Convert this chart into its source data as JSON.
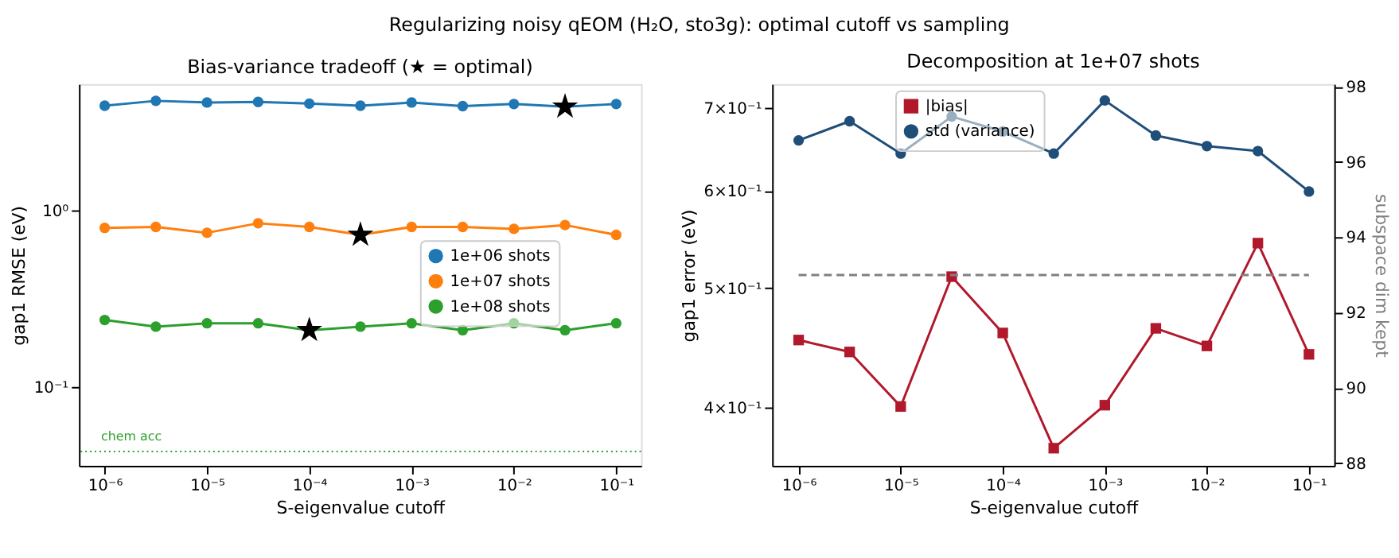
{
  "chart_data": [
    {
      "type": "line",
      "title": "Bias-variance tradeoff (★ = optimal)",
      "xlabel": "S-eigenvalue cutoff",
      "ylabel": "gap1 RMSE (eV)",
      "log": "xy",
      "marker": "circle",
      "line_style": "solid",
      "grid": false,
      "legend": "right",
      "annotations": [
        "Regularizing noisy qEOM (H₂O, sto3g): optimal cutoff vs sampling"
      ],
      "x": [
        1e-06,
        3.16e-06,
        1e-05,
        3.16e-05,
        0.0001,
        0.000316,
        0.001,
        0.00316,
        0.01,
        0.0316,
        0.1
      ],
      "xlim": [
        5.6e-07,
        0.175
      ],
      "xticks": [
        {
          "value": 1e-06,
          "label": "10⁻⁶"
        },
        {
          "value": 1e-05,
          "label": "10⁻⁵"
        },
        {
          "value": 0.0001,
          "label": "10⁻⁴"
        },
        {
          "value": 0.001,
          "label": "10⁻³"
        },
        {
          "value": 0.01,
          "label": "10⁻²"
        },
        {
          "value": 0.1,
          "label": "10⁻¹"
        }
      ],
      "ylim": [
        0.0357,
        5.24
      ],
      "yticks": [
        {
          "value": 0.1,
          "label": "10⁻¹"
        },
        {
          "value": 1,
          "label": "10⁰"
        }
      ],
      "series": [
        {
          "name": "1e+06 shots",
          "color": "#1f77b4",
          "values": [
            3.95,
            4.21,
            4.12,
            4.15,
            4.06,
            3.95,
            4.12,
            3.93,
            4.04,
            3.9,
            4.04
          ]
        },
        {
          "name": "1e+07 shots",
          "color": "#ff7f0e",
          "values": [
            0.8,
            0.81,
            0.75,
            0.85,
            0.81,
            0.73,
            0.81,
            0.81,
            0.79,
            0.83,
            0.73
          ]
        },
        {
          "name": "1e+08 shots",
          "color": "#2ca02c",
          "values": [
            0.24,
            0.22,
            0.23,
            0.23,
            0.21,
            0.22,
            0.23,
            0.21,
            0.23,
            0.21,
            0.23
          ]
        },
        {
          "type": "scatter",
          "marker": "star",
          "color": "#000000",
          "x": [
            0.0316,
            0.000316,
            0.0001
          ],
          "values": [
            3.9,
            0.73,
            0.21
          ]
        }
      ],
      "ref_lines": [
        {
          "axis": "y",
          "value": 0.043,
          "label": "chem acc",
          "color": "#2ca02c",
          "line_style": "dotted"
        }
      ]
    },
    {
      "type": "line",
      "title": "Decomposition at 1e+07 shots",
      "xlabel": "S-eigenvalue cutoff",
      "ylabel": "gap1 error (eV)",
      "y2label": "subspace dim kept",
      "log": "xy",
      "line_style": "solid",
      "grid": false,
      "legend": "top",
      "x": [
        1e-06,
        3.16e-06,
        1e-05,
        3.16e-05,
        0.0001,
        0.000316,
        0.001,
        0.00316,
        0.01,
        0.0316,
        0.1
      ],
      "xlim": [
        5.5e-07,
        0.177
      ],
      "xticks": [
        {
          "value": 1e-06,
          "label": "10⁻⁶"
        },
        {
          "value": 1e-05,
          "label": "10⁻⁵"
        },
        {
          "value": 0.0001,
          "label": "10⁻⁴"
        },
        {
          "value": 0.001,
          "label": "10⁻³"
        },
        {
          "value": 0.01,
          "label": "10⁻²"
        },
        {
          "value": 0.1,
          "label": "10⁻¹"
        }
      ],
      "ylim": [
        0.359,
        0.732
      ],
      "yticks": [
        {
          "value": 0.4,
          "label": "4×10⁻¹"
        },
        {
          "value": 0.5,
          "label": "5×10⁻¹"
        },
        {
          "value": 0.6,
          "label": "6×10⁻¹"
        },
        {
          "value": 0.7,
          "label": "7×10⁻¹"
        }
      ],
      "y2lim": [
        87.93,
        98.07
      ],
      "y2ticks": [
        88,
        90,
        92,
        94,
        96,
        98
      ],
      "series": [
        {
          "name": "|bias|",
          "color": "#b2182b",
          "marker": "square",
          "values": [
            0.454,
            0.444,
            0.401,
            0.511,
            0.46,
            0.371,
            0.402,
            0.464,
            0.449,
            0.544,
            0.442
          ]
        },
        {
          "name": "std (variance)",
          "color": "#1f4e79",
          "marker": "circle",
          "values": [
            0.659,
            0.683,
            0.643,
            0.689,
            0.67,
            0.643,
            0.71,
            0.665,
            0.652,
            0.646,
            0.599
          ]
        },
        {
          "axis": "y2",
          "color": "#808080",
          "marker": "none",
          "line_style": "dashed",
          "values": [
            93,
            93,
            93,
            93,
            93,
            93,
            93,
            93,
            93,
            93,
            93
          ]
        }
      ]
    }
  ]
}
